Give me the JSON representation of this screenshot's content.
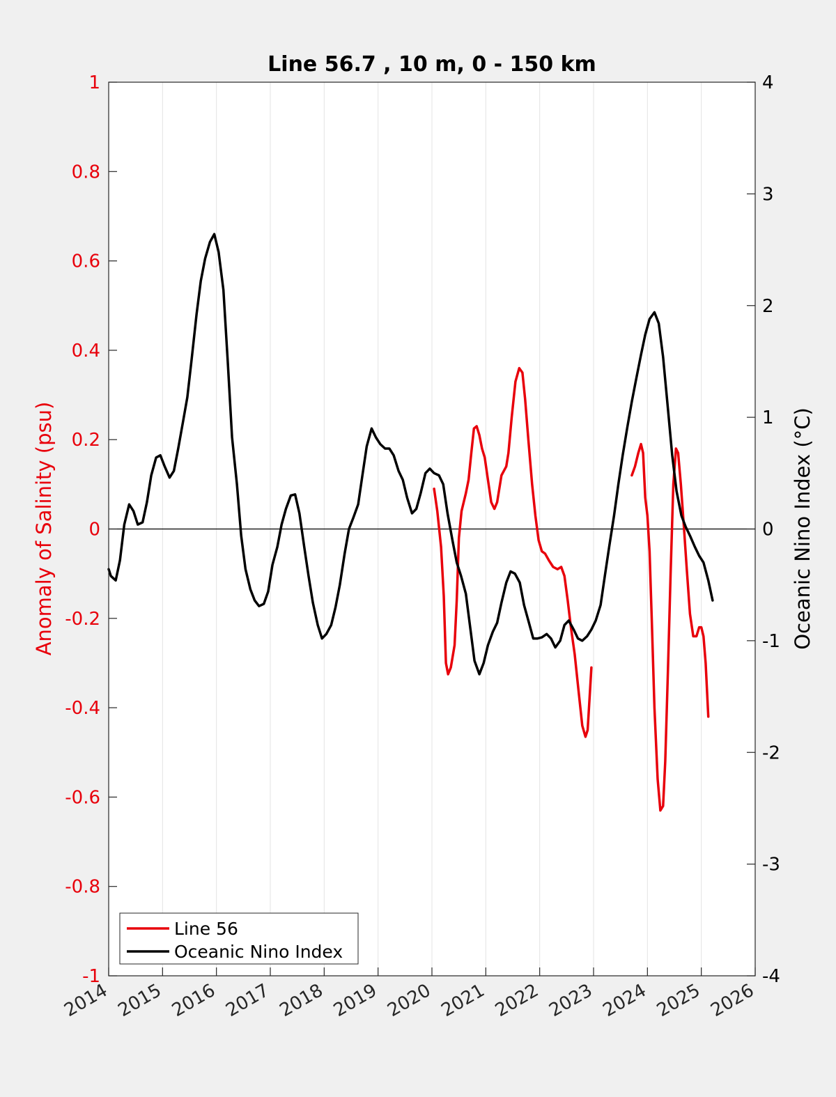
{
  "chart_data": {
    "type": "line",
    "title": "Line 56.7 , 10 m, 0 - 150 km",
    "xlabel": "",
    "ylabel_left": "Anomaly of Salinity (psu)",
    "ylabel_right": "Oceanic Nino Index (°C)",
    "xlim": [
      2014,
      2026
    ],
    "ylim_left": [
      -1,
      1
    ],
    "ylim_right": [
      -4,
      4
    ],
    "x_ticks": [
      "2014",
      "2015",
      "2016",
      "2017",
      "2018",
      "2019",
      "2020",
      "2021",
      "2022",
      "2023",
      "2024",
      "2025",
      "2026"
    ],
    "y_left_ticks": [
      "1",
      "0.8",
      "0.6",
      "0.4",
      "0.2",
      "0",
      "-0.2",
      "-0.4",
      "-0.6",
      "-0.8",
      "-1"
    ],
    "y_right_ticks": [
      "4",
      "3",
      "2",
      "1",
      "0",
      "-1",
      "-2",
      "-3",
      "-4"
    ],
    "grid": "vertical",
    "legend_position": "bottom-left",
    "colors": {
      "salinity": "#e8000b",
      "oni": "#000000",
      "left_axis": "#e8000b",
      "right_axis": "#000000"
    },
    "series": [
      {
        "name": "Line 56",
        "axis": "left",
        "segments": [
          [
            [
              2020.04,
              0.09
            ],
            [
              2020.1,
              0.04
            ],
            [
              2020.17,
              -0.04
            ],
            [
              2020.22,
              -0.15
            ],
            [
              2020.26,
              -0.3
            ],
            [
              2020.3,
              -0.325
            ],
            [
              2020.35,
              -0.31
            ],
            [
              2020.42,
              -0.26
            ],
            [
              2020.46,
              -0.16
            ],
            [
              2020.5,
              -0.02
            ],
            [
              2020.55,
              0.04
            ],
            [
              2020.63,
              0.08
            ],
            [
              2020.68,
              0.11
            ],
            [
              2020.73,
              0.17
            ],
            [
              2020.78,
              0.225
            ],
            [
              2020.83,
              0.23
            ],
            [
              2020.88,
              0.21
            ],
            [
              2020.93,
              0.18
            ],
            [
              2020.98,
              0.16
            ],
            [
              2021.04,
              0.11
            ],
            [
              2021.1,
              0.06
            ],
            [
              2021.16,
              0.045
            ],
            [
              2021.21,
              0.06
            ],
            [
              2021.29,
              0.12
            ],
            [
              2021.38,
              0.14
            ],
            [
              2021.42,
              0.17
            ],
            [
              2021.48,
              0.25
            ],
            [
              2021.55,
              0.33
            ],
            [
              2021.62,
              0.36
            ],
            [
              2021.68,
              0.35
            ],
            [
              2021.73,
              0.29
            ],
            [
              2021.79,
              0.2
            ],
            [
              2021.86,
              0.1
            ],
            [
              2021.92,
              0.03
            ],
            [
              2021.98,
              -0.025
            ],
            [
              2022.04,
              -0.05
            ],
            [
              2022.1,
              -0.055
            ],
            [
              2022.17,
              -0.07
            ],
            [
              2022.25,
              -0.085
            ],
            [
              2022.33,
              -0.09
            ],
            [
              2022.4,
              -0.085
            ],
            [
              2022.46,
              -0.105
            ],
            [
              2022.52,
              -0.16
            ],
            [
              2022.58,
              -0.22
            ],
            [
              2022.65,
              -0.28
            ],
            [
              2022.72,
              -0.36
            ],
            [
              2022.79,
              -0.44
            ],
            [
              2022.85,
              -0.465
            ],
            [
              2022.89,
              -0.45
            ],
            [
              2022.93,
              -0.37
            ],
            [
              2022.96,
              -0.31
            ]
          ],
          [
            [
              2023.71,
              0.12
            ],
            [
              2023.77,
              0.14
            ],
            [
              2023.83,
              0.17
            ],
            [
              2023.88,
              0.19
            ],
            [
              2023.92,
              0.17
            ],
            [
              2023.96,
              0.07
            ],
            [
              2024.0,
              0.03
            ],
            [
              2024.04,
              -0.05
            ],
            [
              2024.08,
              -0.2
            ],
            [
              2024.13,
              -0.4
            ],
            [
              2024.19,
              -0.56
            ],
            [
              2024.24,
              -0.63
            ],
            [
              2024.29,
              -0.62
            ],
            [
              2024.33,
              -0.52
            ],
            [
              2024.38,
              -0.32
            ],
            [
              2024.43,
              -0.1
            ],
            [
              2024.48,
              0.1
            ],
            [
              2024.53,
              0.18
            ],
            [
              2024.57,
              0.17
            ],
            [
              2024.62,
              0.1
            ],
            [
              2024.68,
              0.0
            ],
            [
              2024.73,
              -0.09
            ],
            [
              2024.79,
              -0.19
            ],
            [
              2024.85,
              -0.24
            ],
            [
              2024.91,
              -0.24
            ],
            [
              2024.96,
              -0.22
            ],
            [
              2025.0,
              -0.22
            ],
            [
              2025.04,
              -0.24
            ],
            [
              2025.08,
              -0.3
            ],
            [
              2025.13,
              -0.42
            ]
          ]
        ]
      },
      {
        "name": "Oceanic Nino Index",
        "axis": "right",
        "segments": [
          [
            [
              2014.0,
              -0.36
            ],
            [
              2014.04,
              -0.42
            ],
            [
              2014.13,
              -0.46
            ],
            [
              2014.21,
              -0.28
            ],
            [
              2014.29,
              0.04
            ],
            [
              2014.38,
              0.22
            ],
            [
              2014.46,
              0.16
            ],
            [
              2014.54,
              0.04
            ],
            [
              2014.63,
              0.06
            ],
            [
              2014.71,
              0.24
            ],
            [
              2014.79,
              0.48
            ],
            [
              2014.88,
              0.64
            ],
            [
              2014.96,
              0.66
            ],
            [
              2015.04,
              0.56
            ],
            [
              2015.13,
              0.46
            ],
            [
              2015.21,
              0.52
            ],
            [
              2015.29,
              0.72
            ],
            [
              2015.38,
              0.96
            ],
            [
              2015.46,
              1.18
            ],
            [
              2015.54,
              1.52
            ],
            [
              2015.63,
              1.92
            ],
            [
              2015.71,
              2.22
            ],
            [
              2015.79,
              2.42
            ],
            [
              2015.88,
              2.57
            ],
            [
              2015.96,
              2.64
            ],
            [
              2016.04,
              2.48
            ],
            [
              2016.13,
              2.14
            ],
            [
              2016.21,
              1.5
            ],
            [
              2016.29,
              0.82
            ],
            [
              2016.38,
              0.4
            ],
            [
              2016.46,
              -0.06
            ],
            [
              2016.54,
              -0.36
            ],
            [
              2016.63,
              -0.54
            ],
            [
              2016.71,
              -0.64
            ],
            [
              2016.79,
              -0.69
            ],
            [
              2016.88,
              -0.67
            ],
            [
              2016.96,
              -0.56
            ],
            [
              2017.04,
              -0.32
            ],
            [
              2017.13,
              -0.16
            ],
            [
              2017.21,
              0.04
            ],
            [
              2017.29,
              0.18
            ],
            [
              2017.38,
              0.3
            ],
            [
              2017.46,
              0.31
            ],
            [
              2017.54,
              0.14
            ],
            [
              2017.63,
              -0.16
            ],
            [
              2017.71,
              -0.42
            ],
            [
              2017.79,
              -0.66
            ],
            [
              2017.88,
              -0.86
            ],
            [
              2017.96,
              -0.98
            ],
            [
              2018.04,
              -0.94
            ],
            [
              2018.13,
              -0.86
            ],
            [
              2018.21,
              -0.7
            ],
            [
              2018.29,
              -0.5
            ],
            [
              2018.38,
              -0.22
            ],
            [
              2018.46,
              0.0
            ],
            [
              2018.54,
              0.1
            ],
            [
              2018.63,
              0.22
            ],
            [
              2018.71,
              0.48
            ],
            [
              2018.79,
              0.74
            ],
            [
              2018.88,
              0.9
            ],
            [
              2018.96,
              0.82
            ],
            [
              2019.04,
              0.76
            ],
            [
              2019.13,
              0.72
            ],
            [
              2019.21,
              0.72
            ],
            [
              2019.29,
              0.66
            ],
            [
              2019.38,
              0.52
            ],
            [
              2019.46,
              0.44
            ],
            [
              2019.54,
              0.28
            ],
            [
              2019.63,
              0.14
            ],
            [
              2019.71,
              0.18
            ],
            [
              2019.79,
              0.32
            ],
            [
              2019.88,
              0.5
            ],
            [
              2019.96,
              0.54
            ],
            [
              2020.04,
              0.5
            ],
            [
              2020.13,
              0.48
            ],
            [
              2020.21,
              0.4
            ],
            [
              2020.29,
              0.14
            ],
            [
              2020.38,
              -0.1
            ],
            [
              2020.46,
              -0.3
            ],
            [
              2020.54,
              -0.42
            ],
            [
              2020.63,
              -0.58
            ],
            [
              2020.71,
              -0.88
            ],
            [
              2020.79,
              -1.18
            ],
            [
              2020.88,
              -1.3
            ],
            [
              2020.96,
              -1.2
            ],
            [
              2021.04,
              -1.04
            ],
            [
              2021.13,
              -0.92
            ],
            [
              2021.21,
              -0.84
            ],
            [
              2021.29,
              -0.66
            ],
            [
              2021.38,
              -0.48
            ],
            [
              2021.46,
              -0.38
            ],
            [
              2021.54,
              -0.4
            ],
            [
              2021.63,
              -0.48
            ],
            [
              2021.71,
              -0.68
            ],
            [
              2021.79,
              -0.82
            ],
            [
              2021.88,
              -0.98
            ],
            [
              2021.96,
              -0.98
            ],
            [
              2022.04,
              -0.97
            ],
            [
              2022.13,
              -0.94
            ],
            [
              2022.21,
              -0.98
            ],
            [
              2022.29,
              -1.06
            ],
            [
              2022.38,
              -1.0
            ],
            [
              2022.46,
              -0.86
            ],
            [
              2022.54,
              -0.82
            ],
            [
              2022.63,
              -0.9
            ],
            [
              2022.71,
              -0.98
            ],
            [
              2022.79,
              -1.0
            ],
            [
              2022.88,
              -0.96
            ],
            [
              2022.96,
              -0.9
            ],
            [
              2023.04,
              -0.82
            ],
            [
              2023.13,
              -0.68
            ],
            [
              2023.21,
              -0.42
            ],
            [
              2023.29,
              -0.16
            ],
            [
              2023.38,
              0.12
            ],
            [
              2023.46,
              0.4
            ],
            [
              2023.54,
              0.66
            ],
            [
              2023.63,
              0.92
            ],
            [
              2023.71,
              1.14
            ],
            [
              2023.79,
              1.34
            ],
            [
              2023.88,
              1.56
            ],
            [
              2023.96,
              1.74
            ],
            [
              2024.04,
              1.88
            ],
            [
              2024.13,
              1.94
            ],
            [
              2024.21,
              1.84
            ],
            [
              2024.29,
              1.54
            ],
            [
              2024.38,
              1.08
            ],
            [
              2024.46,
              0.66
            ],
            [
              2024.54,
              0.34
            ],
            [
              2024.63,
              0.12
            ],
            [
              2024.71,
              0.02
            ],
            [
              2024.79,
              -0.06
            ],
            [
              2024.88,
              -0.16
            ],
            [
              2024.96,
              -0.24
            ],
            [
              2025.04,
              -0.3
            ],
            [
              2025.13,
              -0.46
            ],
            [
              2025.21,
              -0.64
            ]
          ]
        ]
      }
    ]
  }
}
